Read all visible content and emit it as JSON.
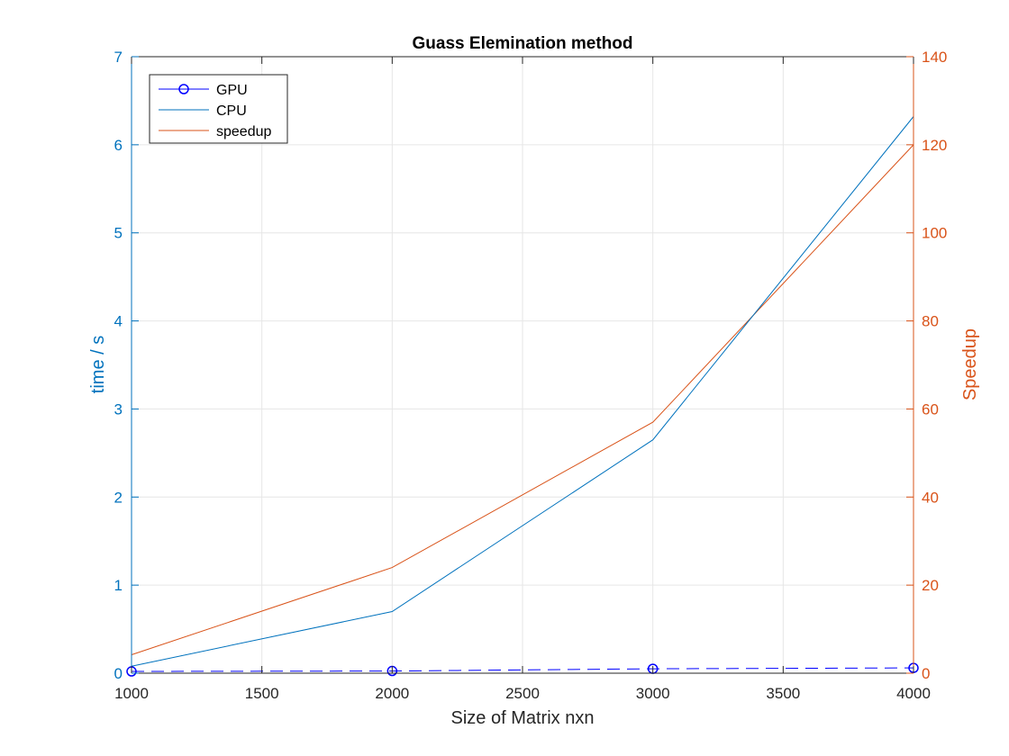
{
  "chart_data": {
    "type": "line",
    "title": "Guass Elemination method",
    "xlabel": "Size of Matrix nxn",
    "ylabel_left": "time / s",
    "ylabel_right": "Speedup",
    "xlim": [
      1000,
      4000
    ],
    "ylim_left": [
      0,
      7
    ],
    "ylim_right": [
      0,
      140
    ],
    "xticks": [
      1000,
      1500,
      2000,
      2500,
      3000,
      3500,
      4000
    ],
    "yticks_left": [
      0,
      1,
      2,
      3,
      4,
      5,
      6,
      7
    ],
    "yticks_right": [
      0,
      20,
      40,
      60,
      80,
      100,
      120,
      140
    ],
    "grid": true,
    "legend_location": "top-left",
    "x": [
      1000,
      2000,
      3000,
      4000
    ],
    "series": [
      {
        "name": "GPU",
        "axis": "left",
        "values": [
          0.02,
          0.025,
          0.05,
          0.06
        ],
        "color": "#0000ff",
        "line_style": "dashed",
        "marker": "circle"
      },
      {
        "name": "CPU",
        "axis": "left",
        "values": [
          0.08,
          0.7,
          2.65,
          6.32
        ],
        "color": "#0072bd",
        "line_style": "solid",
        "marker": "none"
      },
      {
        "name": "speedup",
        "axis": "right",
        "values": [
          4.2,
          24,
          57,
          120
        ],
        "color": "#d95319",
        "line_style": "solid",
        "marker": "none"
      }
    ],
    "colors": {
      "left_axis": "#0072bd",
      "right_axis": "#d95319",
      "bottom_axis": "#262626",
      "grid": "#e6e6e6"
    }
  }
}
